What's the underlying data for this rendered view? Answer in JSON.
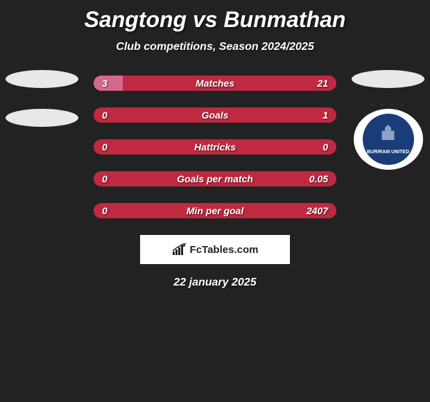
{
  "header": {
    "title": "Sangtong vs Bunmathan",
    "subtitle": "Club competitions, Season 2024/2025"
  },
  "stats": [
    {
      "label": "Matches",
      "left_value": "3",
      "right_value": "21",
      "left_pct": 12,
      "bar_left_color": "#d4688a",
      "bar_right_color": "#c02942"
    },
    {
      "label": "Goals",
      "left_value": "0",
      "right_value": "1",
      "left_pct": 0,
      "bar_left_color": "#d4688a",
      "bar_right_color": "#c02942"
    },
    {
      "label": "Hattricks",
      "left_value": "0",
      "right_value": "0",
      "left_pct": 0,
      "bar_left_color": "#d4688a",
      "bar_right_color": "#c02942"
    },
    {
      "label": "Goals per match",
      "left_value": "0",
      "right_value": "0.05",
      "left_pct": 0,
      "bar_left_color": "#d4688a",
      "bar_right_color": "#c02942"
    },
    {
      "label": "Min per goal",
      "left_value": "0",
      "right_value": "2407",
      "left_pct": 0,
      "bar_left_color": "#d4688a",
      "bar_right_color": "#c02942"
    }
  ],
  "footer": {
    "brand": "FcTables.com",
    "date": "22 january 2025"
  },
  "badges": {
    "right_club_text": "BURIRAM UNITED"
  },
  "colors": {
    "background": "#222222",
    "text": "#ffffff",
    "bar_primary": "#c02942",
    "bar_secondary": "#d4688a",
    "badge_oval": "#e8e8e8",
    "footer_bg": "#ffffff"
  }
}
